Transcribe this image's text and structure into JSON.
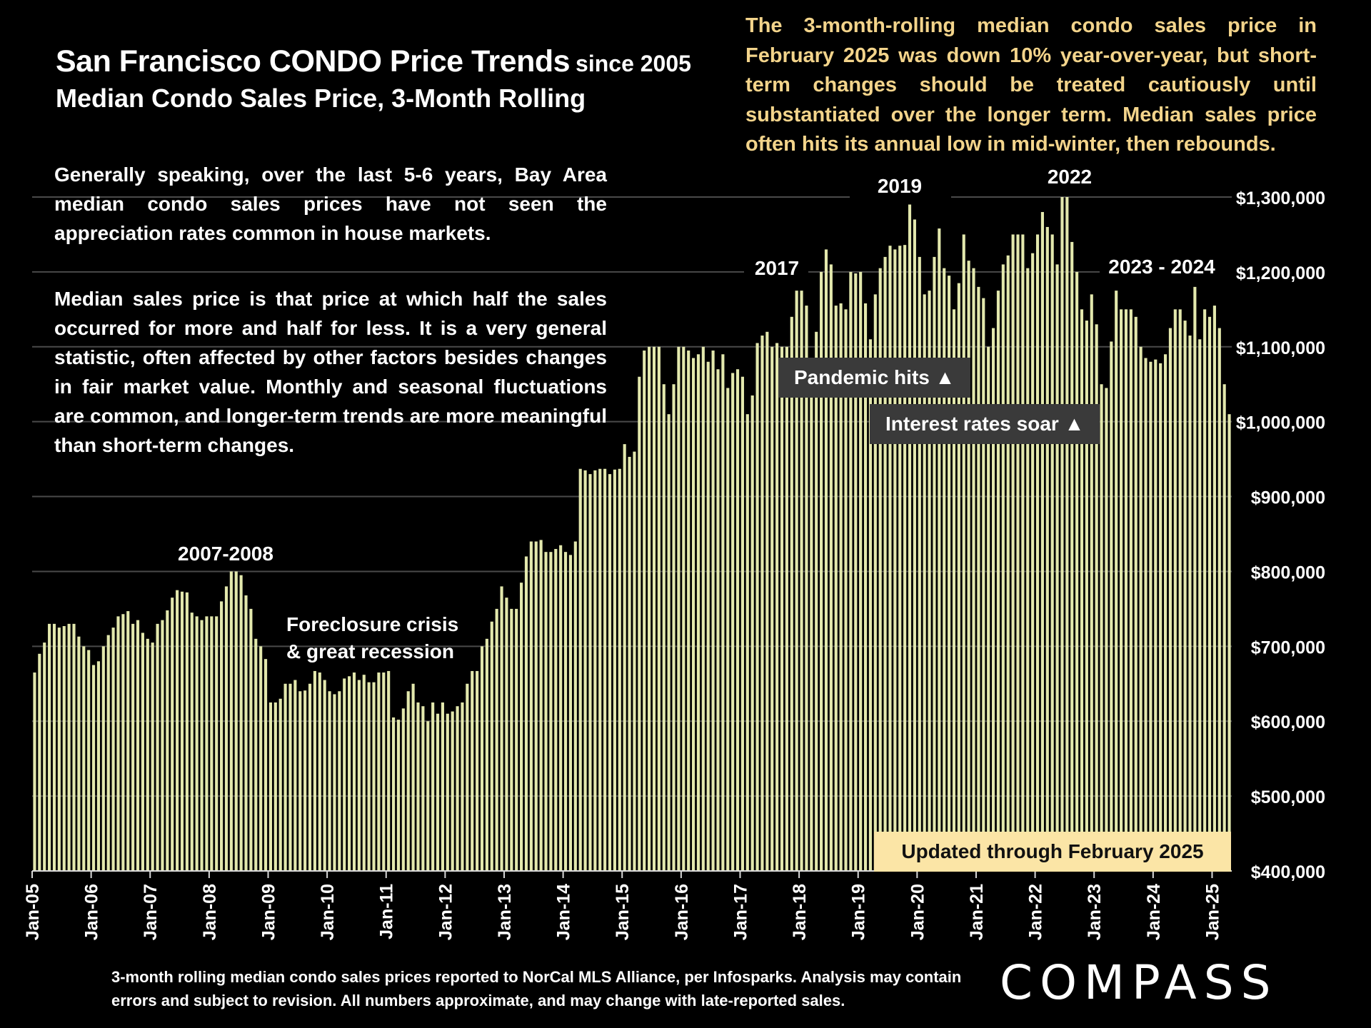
{
  "header": {
    "title": "San Francisco CONDO Price Trends",
    "title_suffix": "since 2005",
    "subtitle": "Median Condo Sales Price, 3-Month Rolling"
  },
  "notes": {
    "top_right": "The 3-month-rolling median condo sales price in February 2025 was down 10% year-over-year, but short-term changes should be treated cautiously until substantiated over the longer term. Median sales price often hits its annual low in mid-winter, then rebounds.",
    "left_1": "Generally speaking, over the last 5-6 years, Bay Area median condo sales prices have not seen the appreciation rates common in house markets.",
    "left_2": "Median sales price is that price at which half the sales occurred for more and half for less. It is a very general statistic, often affected by other factors besides changes in fair market value. Monthly and seasonal fluctuations are common, and longer-term trends are more meaningful than short-term changes."
  },
  "callouts": {
    "pandemic": "Pandemic hits ▲",
    "rates": "Interest rates soar ▲",
    "updated": "Updated through February 2025"
  },
  "footer": {
    "footnote": "3-month rolling median condo sales prices reported to NorCal MLS Alliance, per Infosparks. Analysis may contain errors and subject to revision. All numbers approximate, and may change with late-reported sales.",
    "logo": "COMPASS"
  },
  "colors": {
    "bar": "#e3e8ad",
    "accent_text": "#f3d48b",
    "gridline": "#4a4a4a",
    "background": "#000000"
  },
  "chart_data": {
    "type": "bar",
    "title": "San Francisco CONDO Price Trends since 2005",
    "subtitle": "Median Condo Sales Price, 3-Month Rolling",
    "xlabel": "",
    "ylabel": "",
    "ylim": [
      400000,
      1300000
    ],
    "y_ticks": [
      400000,
      500000,
      600000,
      700000,
      800000,
      900000,
      1000000,
      1100000,
      1200000,
      1300000
    ],
    "y_tick_labels": [
      "$400,000",
      "$500,000",
      "$600,000",
      "$700,000",
      "$800,000",
      "$900,000",
      "$1,000,000",
      "$1,100,000",
      "$1,200,000",
      "$1,300,000"
    ],
    "x_tick_labels": [
      "Jan-05",
      "Jan-06",
      "Jan-07",
      "Jan-08",
      "Jan-09",
      "Jan-10",
      "Jan-11",
      "Jan-12",
      "Jan-13",
      "Jan-14",
      "Jan-15",
      "Jan-16",
      "Jan-17",
      "Jan-18",
      "Jan-19",
      "Jan-20",
      "Jan-21",
      "Jan-22",
      "Jan-23",
      "Jan-24",
      "Jan-25"
    ],
    "first_period": "Jan-05",
    "last_period": "Feb-25",
    "grid": true,
    "legend": "none",
    "annotations": [
      "2007-2008",
      "Foreclosure crisis",
      "& great recession",
      "2017",
      "2019",
      "2022",
      "2023 - 2024"
    ],
    "values": [
      665000,
      690000,
      705000,
      730000,
      730000,
      725000,
      727000,
      730000,
      730000,
      713000,
      700000,
      695000,
      675000,
      680000,
      700000,
      715000,
      725000,
      740000,
      743000,
      747000,
      730000,
      735000,
      718000,
      710000,
      705000,
      730000,
      735000,
      748000,
      765000,
      775000,
      773000,
      772000,
      745000,
      740000,
      735000,
      740000,
      740000,
      740000,
      760000,
      780000,
      800000,
      800000,
      795000,
      768000,
      750000,
      710000,
      700000,
      683000,
      625000,
      625000,
      630000,
      650000,
      650000,
      655000,
      640000,
      641000,
      650000,
      667000,
      665000,
      655000,
      640000,
      636000,
      640000,
      657000,
      660000,
      665000,
      655000,
      662000,
      652000,
      652000,
      665000,
      665000,
      667000,
      605000,
      602000,
      617000,
      640000,
      650000,
      625000,
      620000,
      600000,
      625000,
      610000,
      625000,
      610000,
      613000,
      620000,
      625000,
      650000,
      667000,
      667000,
      700000,
      710000,
      733000,
      750000,
      780000,
      765000,
      750000,
      750000,
      785000,
      820000,
      840000,
      840000,
      842000,
      826000,
      826000,
      830000,
      835000,
      826000,
      822000,
      840000,
      937000,
      935000,
      930000,
      935000,
      937000,
      937000,
      930000,
      936000,
      937000,
      970000,
      953000,
      960000,
      1060000,
      1095000,
      1100000,
      1100000,
      1100000,
      1050000,
      1010000,
      1050000,
      1100000,
      1100000,
      1095000,
      1085000,
      1090000,
      1100000,
      1080000,
      1095000,
      1070000,
      1090000,
      1045000,
      1065000,
      1070000,
      1060000,
      1010000,
      1035000,
      1105000,
      1115000,
      1120000,
      1100000,
      1105000,
      1100000,
      1100000,
      1140000,
      1175000,
      1175000,
      1155000,
      1085000,
      1120000,
      1200000,
      1230000,
      1210000,
      1155000,
      1158000,
      1150000,
      1200000,
      1198000,
      1200000,
      1158000,
      1110000,
      1170000,
      1205000,
      1220000,
      1235000,
      1230000,
      1235000,
      1236000,
      1290000,
      1270000,
      1220000,
      1170000,
      1175000,
      1220000,
      1258000,
      1205000,
      1195000,
      1150000,
      1185000,
      1250000,
      1215000,
      1205000,
      1180000,
      1165000,
      1100000,
      1125000,
      1175000,
      1210000,
      1222000,
      1250000,
      1250000,
      1250000,
      1205000,
      1225000,
      1250000,
      1280000,
      1260000,
      1250000,
      1210000,
      1300000,
      1300000,
      1240000,
      1200000,
      1150000,
      1135000,
      1170000,
      1130000,
      1050000,
      1045000,
      1107000,
      1175000,
      1150000,
      1150000,
      1150000,
      1140000,
      1100000,
      1085000,
      1080000,
      1083000,
      1078000,
      1090000,
      1125000,
      1150000,
      1150000,
      1135000,
      1115000,
      1180000,
      1110000,
      1150000,
      1140000,
      1155000,
      1125000,
      1050000,
      1010000
    ]
  }
}
